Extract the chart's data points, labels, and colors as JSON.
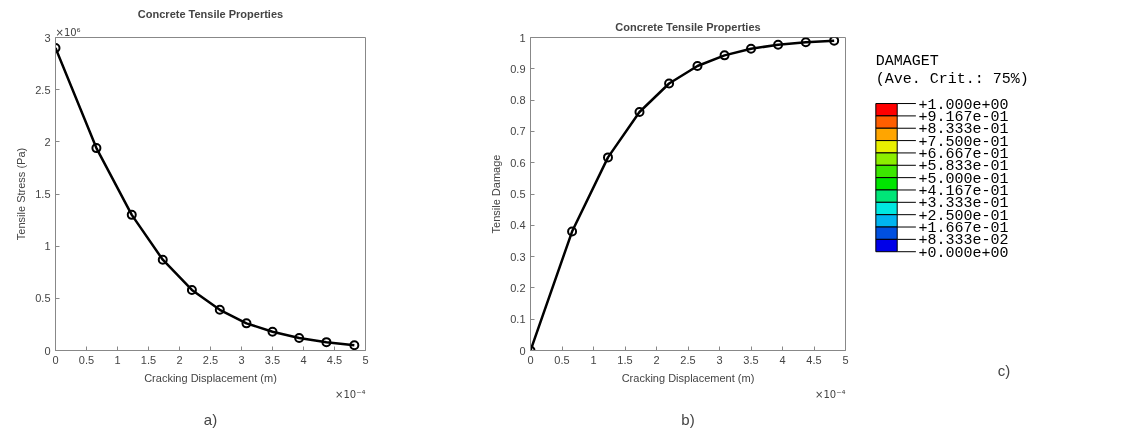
{
  "chart_data": [
    {
      "type": "line",
      "title": "Concrete Tensile Properties",
      "xlabel": "Cracking Displacement (m)",
      "ylabel": "Tensile Stress (Pa)",
      "x": [
        0,
        0.66,
        1.23,
        1.73,
        2.2,
        2.65,
        3.08,
        3.5,
        3.93,
        4.37,
        4.82
      ],
      "series": [
        {
          "color": "#000000",
          "values": [
            2.9,
            1.94,
            1.3,
            0.87,
            0.58,
            0.39,
            0.26,
            0.18,
            0.12,
            0.08,
            0.05
          ]
        }
      ],
      "xlim": [
        0,
        5
      ],
      "xticks": [
        0,
        0.5,
        1,
        1.5,
        2,
        2.5,
        3,
        3.5,
        4,
        4.5,
        5
      ],
      "ylim": [
        0,
        3
      ],
      "yticks": [
        0,
        0.5,
        1,
        1.5,
        2,
        2.5,
        3
      ],
      "grid": false,
      "marker": "circle",
      "line_style": "solid",
      "annotations": [
        "×10⁻⁴",
        "×10⁶",
        "a)"
      ]
    },
    {
      "type": "line",
      "title": "Concrete Tensile Properties",
      "xlabel": "Cracking Displacement (m)",
      "ylabel": "Tensile Damage",
      "x": [
        0,
        0.66,
        1.23,
        1.73,
        2.2,
        2.65,
        3.08,
        3.5,
        3.93,
        4.37,
        4.82
      ],
      "series": [
        {
          "color": "#000000",
          "values": [
            0,
            0.38,
            0.617,
            0.762,
            0.853,
            0.909,
            0.943,
            0.964,
            0.977,
            0.985,
            0.99
          ]
        }
      ],
      "xlim": [
        0,
        5
      ],
      "xticks": [
        0,
        0.5,
        1,
        1.5,
        2,
        2.5,
        3,
        3.5,
        4,
        4.5,
        5
      ],
      "ylim": [
        0,
        1
      ],
      "yticks": [
        0,
        0.1,
        0.2,
        0.3,
        0.4,
        0.5,
        0.6,
        0.7,
        0.8,
        0.9,
        1
      ],
      "grid": false,
      "marker": "circle",
      "line_style": "solid",
      "annotations": [
        "×10⁻⁴",
        "b)"
      ]
    },
    {
      "type": "other",
      "title": "DAMAGET",
      "subtitle": "(Ave. Crit.: 75%)",
      "categories": [
        "+1.000e+00",
        "+9.167e-01",
        "+8.333e-01",
        "+7.500e-01",
        "+6.667e-01",
        "+5.833e-01",
        "+5.000e-01",
        "+4.167e-01",
        "+3.333e-01",
        "+2.500e-01",
        "+1.667e-01",
        "+8.333e-02",
        "+0.000e+00"
      ],
      "colors": [
        "#ff0000",
        "#ff5e00",
        "#ffa500",
        "#e8f000",
        "#8cee00",
        "#3ce600",
        "#00e600",
        "#00e678",
        "#00e8e0",
        "#00b4f0",
        "#0050e0",
        "#0000e8"
      ],
      "annotations": [
        "c)"
      ]
    }
  ]
}
